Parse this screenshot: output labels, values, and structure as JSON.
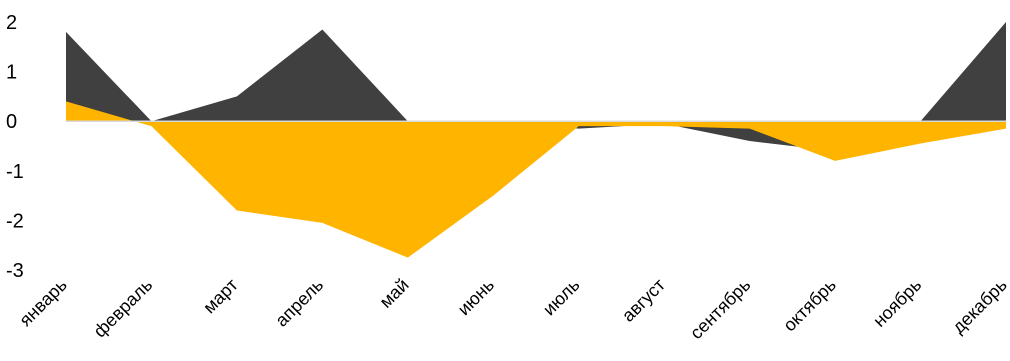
{
  "chart_data": {
    "type": "area",
    "title": "",
    "xlabel": "",
    "ylabel": "",
    "ylim": [
      -3,
      2
    ],
    "yticks": [
      "2",
      "1",
      "0",
      "-1",
      "-2",
      "-3"
    ],
    "grid": false,
    "legend": "none",
    "categories": [
      "январь",
      "февраль",
      "март",
      "апрель",
      "май",
      "июнь",
      "июль",
      "август",
      "сентябрь",
      "октябрь",
      "ноябрь",
      "декабрь"
    ],
    "series": [
      {
        "color": "#404040",
        "values": [
          1.8,
          0.0,
          0.5,
          1.85,
          0.0,
          0.0,
          -0.15,
          -0.05,
          -0.4,
          -0.6,
          0.0,
          2.0
        ]
      },
      {
        "color": "#ffb400",
        "values": [
          0.4,
          -0.1,
          -1.8,
          -2.05,
          -2.75,
          -1.5,
          -0.1,
          -0.1,
          -0.15,
          -0.8,
          -0.45,
          -0.15
        ]
      }
    ]
  }
}
